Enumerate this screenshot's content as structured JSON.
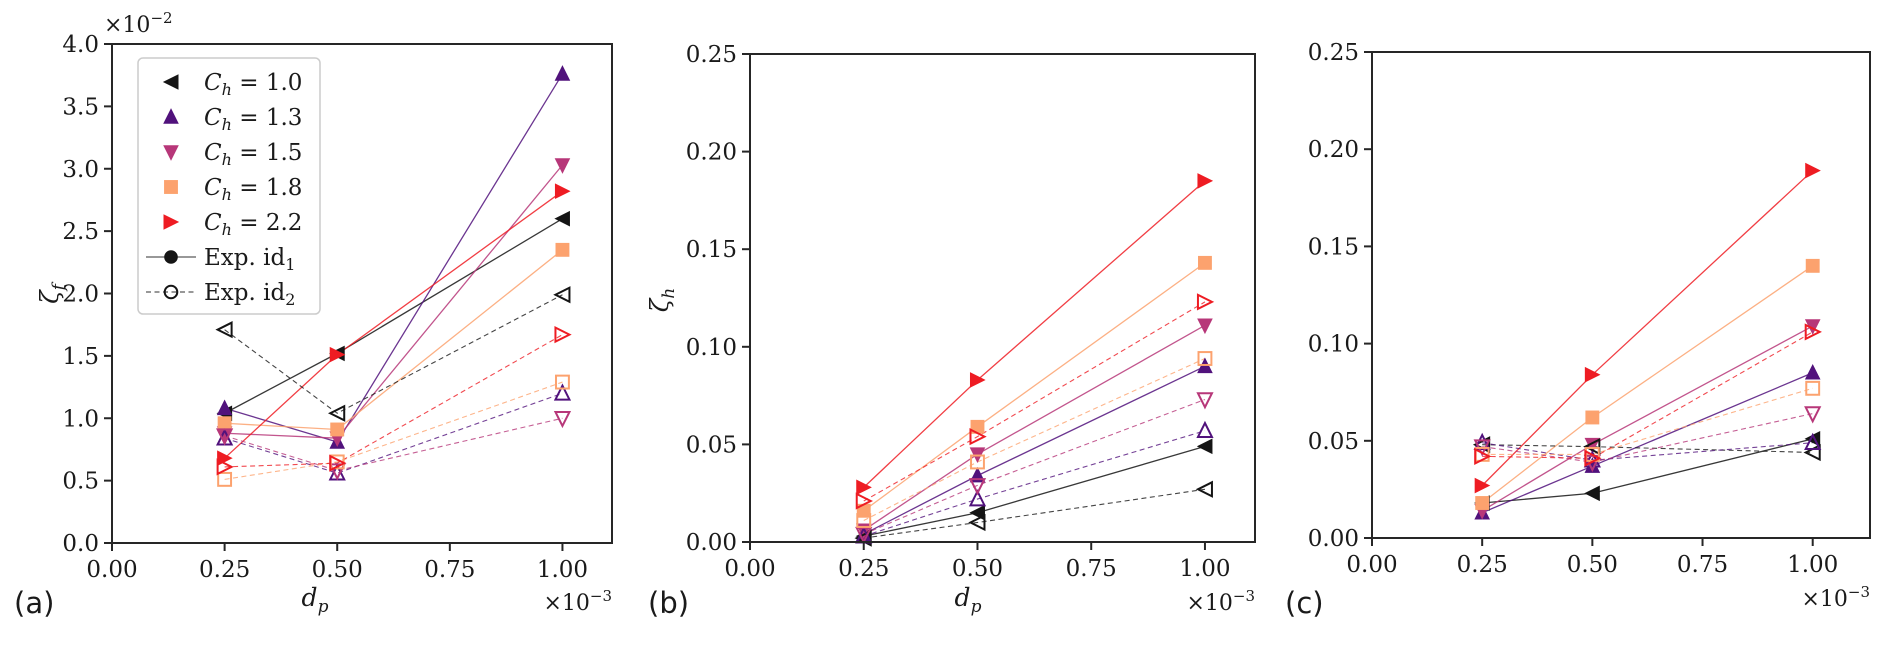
{
  "figure": {
    "background": "#ffffff",
    "text_color": "#1a1a1a"
  },
  "palette": {
    "ch_1_0": "#151515",
    "ch_1_3": "#51127c",
    "ch_1_5": "#b73779",
    "ch_1_8": "#fca26e",
    "ch_2_2": "#ee1c23"
  },
  "chart_data": [
    {
      "panel_label": "(a)",
      "type": "line",
      "xlabel": [
        {
          "t": "d",
          "italic": true
        },
        {
          "t": "p",
          "italic": true,
          "sub": true
        }
      ],
      "ylabel": [
        {
          "t": "ζ",
          "italic": true
        },
        {
          "t": "f",
          "italic": true,
          "sub": true
        }
      ],
      "x_offset": {
        "base": "×10",
        "exp": "−3"
      },
      "y_offset": {
        "base": "×10",
        "exp": "−2"
      },
      "xlim": [
        0,
        1.11
      ],
      "ylim": [
        0,
        4.0
      ],
      "xticks": [
        0,
        0.25,
        0.5,
        0.75,
        1.0
      ],
      "xtick_labels": [
        "0.00",
        "0.25",
        "0.50",
        "0.75",
        "1.00"
      ],
      "yticks": [
        0,
        0.5,
        1.0,
        1.5,
        2.0,
        2.5,
        3.0,
        3.5,
        4.0
      ],
      "ytick_labels": [
        "0.0",
        "0.5",
        "1.0",
        "1.5",
        "2.0",
        "2.5",
        "3.0",
        "3.5",
        "4.0"
      ],
      "x": [
        0.25,
        0.5,
        1.0
      ],
      "series": [
        {
          "name": "C_h=1.0 Exp.id_1",
          "color": "#151515",
          "marker": "left",
          "filled": true,
          "line": "solid",
          "values": [
            1.04,
            1.52,
            2.6
          ]
        },
        {
          "name": "C_h=1.3 Exp.id_1",
          "color": "#51127c",
          "marker": "up",
          "filled": true,
          "line": "solid",
          "values": [
            1.08,
            0.81,
            3.76
          ]
        },
        {
          "name": "C_h=1.5 Exp.id_1",
          "color": "#b73779",
          "marker": "down",
          "filled": true,
          "line": "solid",
          "values": [
            0.88,
            0.84,
            3.03
          ]
        },
        {
          "name": "C_h=1.8 Exp.id_1",
          "color": "#fca26e",
          "marker": "square",
          "filled": true,
          "line": "solid",
          "values": [
            0.96,
            0.91,
            2.35
          ]
        },
        {
          "name": "C_h=2.2 Exp.id_1",
          "color": "#ee1c23",
          "marker": "right",
          "filled": true,
          "line": "solid",
          "values": [
            0.68,
            1.51,
            2.82
          ]
        },
        {
          "name": "C_h=1.0 Exp.id_2",
          "color": "#151515",
          "marker": "left",
          "filled": false,
          "line": "dashed",
          "values": [
            1.71,
            1.04,
            1.99
          ]
        },
        {
          "name": "C_h=1.3 Exp.id_2",
          "color": "#51127c",
          "marker": "up",
          "filled": false,
          "line": "dashed",
          "values": [
            0.84,
            0.56,
            1.2
          ]
        },
        {
          "name": "C_h=1.5 Exp.id_2",
          "color": "#b73779",
          "marker": "down",
          "filled": false,
          "line": "dashed",
          "values": [
            0.86,
            0.58,
            1.0
          ]
        },
        {
          "name": "C_h=1.8 Exp.id_2",
          "color": "#fca26e",
          "marker": "square",
          "filled": false,
          "line": "dashed",
          "values": [
            0.51,
            0.65,
            1.29
          ]
        },
        {
          "name": "C_h=2.2 Exp.id_2",
          "color": "#ee1c23",
          "marker": "right",
          "filled": false,
          "line": "dashed",
          "values": [
            0.61,
            0.64,
            1.67
          ]
        }
      ],
      "legend": {
        "position": "upper-left",
        "entries": [
          {
            "marker": "left",
            "color": "#151515",
            "filled": true,
            "label": [
              {
                "t": "C",
                "italic": true
              },
              {
                "t": "h",
                "italic": true,
                "sub": true
              },
              {
                "t": " = 1.0"
              }
            ]
          },
          {
            "marker": "up",
            "color": "#51127c",
            "filled": true,
            "label": [
              {
                "t": "C",
                "italic": true
              },
              {
                "t": "h",
                "italic": true,
                "sub": true
              },
              {
                "t": " = 1.3"
              }
            ]
          },
          {
            "marker": "down",
            "color": "#b73779",
            "filled": true,
            "label": [
              {
                "t": "C",
                "italic": true
              },
              {
                "t": "h",
                "italic": true,
                "sub": true
              },
              {
                "t": " = 1.5"
              }
            ]
          },
          {
            "marker": "square",
            "color": "#fca26e",
            "filled": true,
            "label": [
              {
                "t": "C",
                "italic": true
              },
              {
                "t": "h",
                "italic": true,
                "sub": true
              },
              {
                "t": " = 1.8"
              }
            ]
          },
          {
            "marker": "right",
            "color": "#ee1c23",
            "filled": true,
            "label": [
              {
                "t": "C",
                "italic": true
              },
              {
                "t": "h",
                "italic": true,
                "sub": true
              },
              {
                "t": " = 2.2"
              }
            ]
          },
          {
            "marker": "circle",
            "color": "#151515",
            "filled": true,
            "line": "solid",
            "label": [
              {
                "t": "Exp. id"
              },
              {
                "t": "1",
                "sub": true
              }
            ]
          },
          {
            "marker": "circle",
            "color": "#151515",
            "filled": false,
            "line": "dashed",
            "label": [
              {
                "t": "Exp. id"
              },
              {
                "t": "2",
                "sub": true
              }
            ]
          }
        ]
      }
    },
    {
      "panel_label": "(b)",
      "type": "line",
      "xlabel": [
        {
          "t": "d",
          "italic": true
        },
        {
          "t": "p",
          "italic": true,
          "sub": true
        }
      ],
      "ylabel": [
        {
          "t": "ζ",
          "italic": true
        },
        {
          "t": "h",
          "italic": true,
          "sub": true
        }
      ],
      "x_offset": {
        "base": "×10",
        "exp": "−3"
      },
      "y_offset": null,
      "xlim": [
        0,
        1.11
      ],
      "ylim": [
        0,
        0.25
      ],
      "xticks": [
        0,
        0.25,
        0.5,
        0.75,
        1.0
      ],
      "xtick_labels": [
        "0.00",
        "0.25",
        "0.50",
        "0.75",
        "1.00"
      ],
      "yticks": [
        0,
        0.05,
        0.1,
        0.15,
        0.2,
        0.25
      ],
      "ytick_labels": [
        "0.00",
        "0.05",
        "0.10",
        "0.15",
        "0.20",
        "0.25"
      ],
      "x": [
        0.25,
        0.5,
        1.0
      ],
      "series": [
        {
          "name": "C_h=1.0 Exp.id_1",
          "color": "#151515",
          "marker": "left",
          "filled": true,
          "line": "solid",
          "values": [
            0.003,
            0.015,
            0.049
          ]
        },
        {
          "name": "C_h=1.3 Exp.id_1",
          "color": "#51127c",
          "marker": "up",
          "filled": true,
          "line": "solid",
          "values": [
            0.004,
            0.034,
            0.09
          ]
        },
        {
          "name": "C_h=1.5 Exp.id_1",
          "color": "#b73779",
          "marker": "down",
          "filled": true,
          "line": "solid",
          "values": [
            0.006,
            0.045,
            0.111
          ]
        },
        {
          "name": "C_h=1.8 Exp.id_1",
          "color": "#fca26e",
          "marker": "square",
          "filled": true,
          "line": "solid",
          "values": [
            0.016,
            0.059,
            0.143
          ]
        },
        {
          "name": "C_h=2.2 Exp.id_1",
          "color": "#ee1c23",
          "marker": "right",
          "filled": true,
          "line": "solid",
          "values": [
            0.028,
            0.083,
            0.185
          ]
        },
        {
          "name": "C_h=1.0 Exp.id_2",
          "color": "#151515",
          "marker": "left",
          "filled": false,
          "line": "dashed",
          "values": [
            0.002,
            0.01,
            0.027
          ]
        },
        {
          "name": "C_h=1.3 Exp.id_2",
          "color": "#51127c",
          "marker": "up",
          "filled": false,
          "line": "dashed",
          "values": [
            0.003,
            0.022,
            0.057
          ]
        },
        {
          "name": "C_h=1.5 Exp.id_2",
          "color": "#b73779",
          "marker": "down",
          "filled": false,
          "line": "dashed",
          "values": [
            0.004,
            0.029,
            0.073
          ]
        },
        {
          "name": "C_h=1.8 Exp.id_2",
          "color": "#fca26e",
          "marker": "square",
          "filled": false,
          "line": "dashed",
          "values": [
            0.011,
            0.041,
            0.094
          ]
        },
        {
          "name": "C_h=2.2 Exp.id_2",
          "color": "#ee1c23",
          "marker": "right",
          "filled": false,
          "line": "dashed",
          "values": [
            0.021,
            0.054,
            0.123
          ]
        }
      ],
      "legend": null
    },
    {
      "panel_label": "(c)",
      "type": "line",
      "xlabel": null,
      "ylabel": null,
      "x_offset": {
        "base": "×10",
        "exp": "−3"
      },
      "y_offset": null,
      "xlim": [
        0,
        1.13
      ],
      "ylim": [
        0,
        0.25
      ],
      "xticks": [
        0,
        0.25,
        0.5,
        0.75,
        1.0
      ],
      "xtick_labels": [
        "0.00",
        "0.25",
        "0.50",
        "0.75",
        "1.00"
      ],
      "yticks": [
        0,
        0.05,
        0.1,
        0.15,
        0.2,
        0.25
      ],
      "ytick_labels": [
        "0.00",
        "0.05",
        "0.10",
        "0.15",
        "0.20",
        "0.25"
      ],
      "x": [
        0.25,
        0.5,
        1.0
      ],
      "series": [
        {
          "name": "C_h=1.0 Exp.id_1",
          "color": "#151515",
          "marker": "left",
          "filled": true,
          "line": "solid",
          "values": [
            0.018,
            0.023,
            0.051
          ]
        },
        {
          "name": "C_h=1.3 Exp.id_1",
          "color": "#51127c",
          "marker": "up",
          "filled": true,
          "line": "solid",
          "values": [
            0.013,
            0.037,
            0.085
          ]
        },
        {
          "name": "C_h=1.5 Exp.id_1",
          "color": "#b73779",
          "marker": "down",
          "filled": true,
          "line": "solid",
          "values": [
            0.014,
            0.048,
            0.109
          ]
        },
        {
          "name": "C_h=1.8 Exp.id_1",
          "color": "#fca26e",
          "marker": "square",
          "filled": true,
          "line": "solid",
          "values": [
            0.018,
            0.062,
            0.14
          ]
        },
        {
          "name": "C_h=2.2 Exp.id_1",
          "color": "#ee1c23",
          "marker": "right",
          "filled": true,
          "line": "solid",
          "values": [
            0.027,
            0.084,
            0.189
          ]
        },
        {
          "name": "C_h=1.0 Exp.id_2",
          "color": "#151515",
          "marker": "left",
          "filled": false,
          "line": "dashed",
          "values": [
            0.048,
            0.047,
            0.044
          ]
        },
        {
          "name": "C_h=1.3 Exp.id_2",
          "color": "#51127c",
          "marker": "up",
          "filled": false,
          "line": "dashed",
          "values": [
            0.049,
            0.04,
            0.049
          ]
        },
        {
          "name": "C_h=1.5 Exp.id_2",
          "color": "#b73779",
          "marker": "down",
          "filled": false,
          "line": "dashed",
          "values": [
            0.047,
            0.039,
            0.064
          ]
        },
        {
          "name": "C_h=1.8 Exp.id_2",
          "color": "#fca26e",
          "marker": "square",
          "filled": false,
          "line": "dashed",
          "values": [
            0.043,
            0.043,
            0.077
          ]
        },
        {
          "name": "C_h=2.2 Exp.id_2",
          "color": "#ee1c23",
          "marker": "right",
          "filled": false,
          "line": "dashed",
          "values": [
            0.042,
            0.041,
            0.106
          ]
        }
      ],
      "legend": null
    }
  ]
}
